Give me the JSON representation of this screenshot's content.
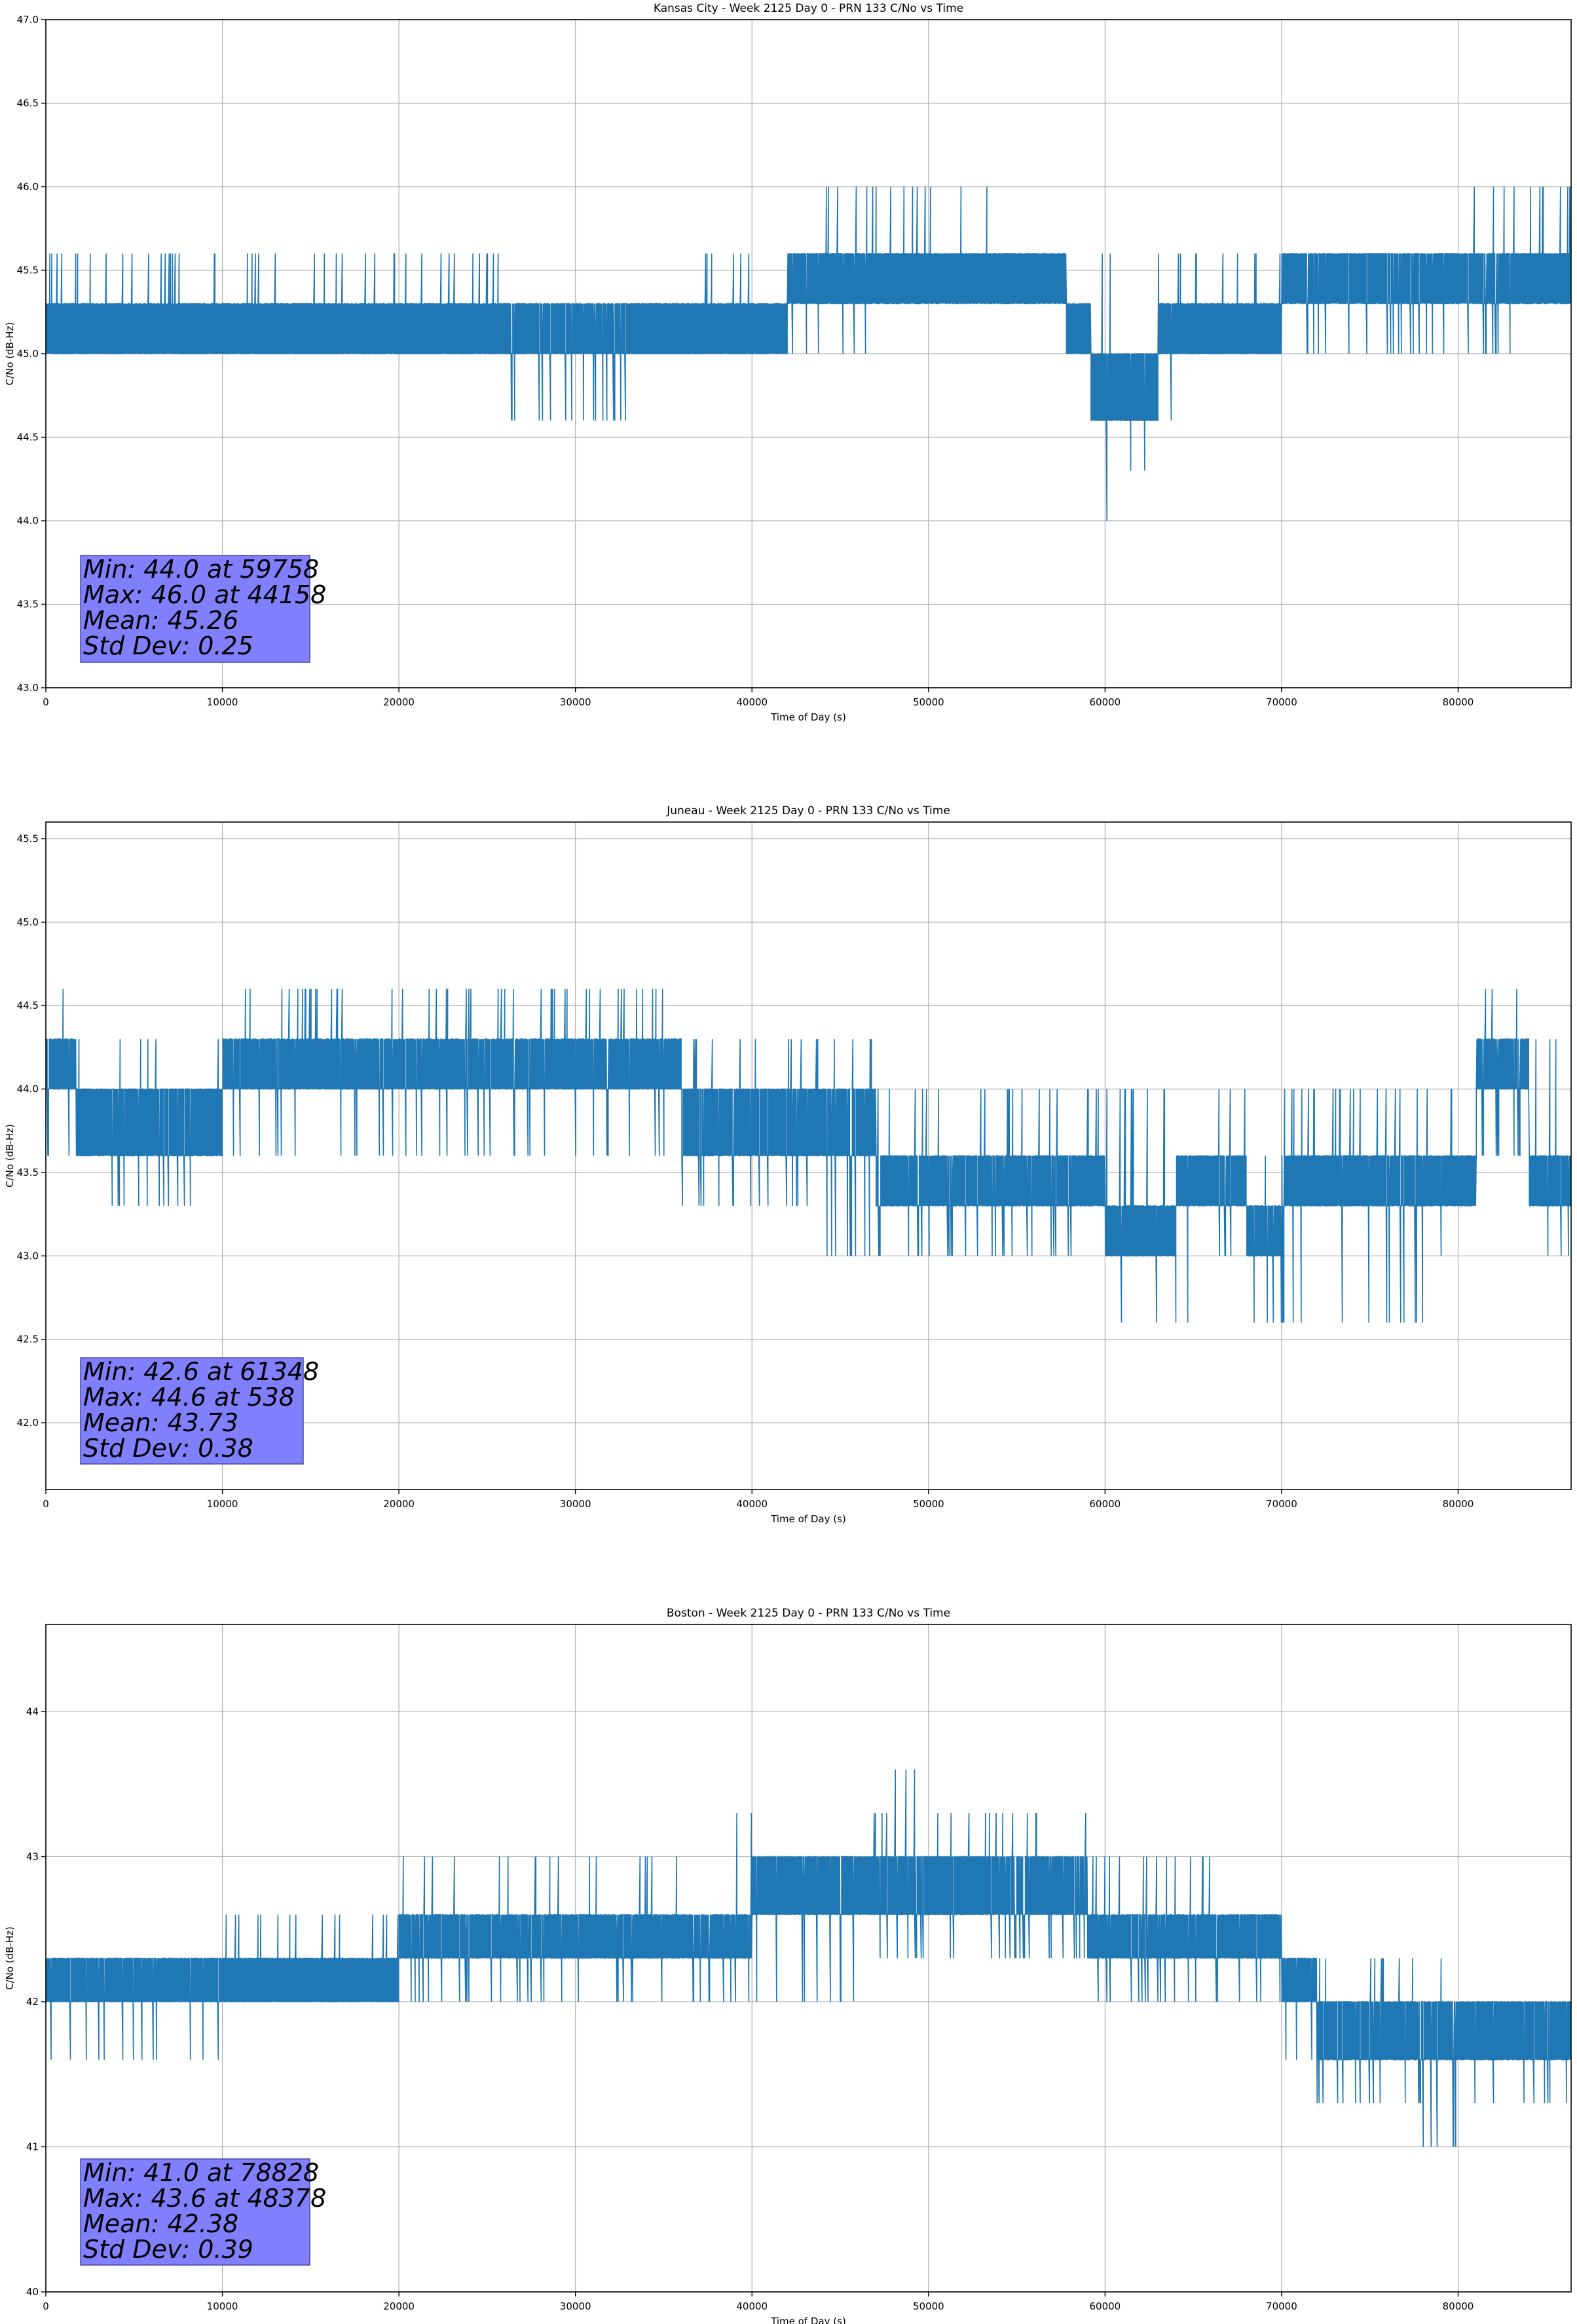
{
  "chart_data": [
    {
      "type": "line",
      "title": "Kansas City - Week 2125 Day 0 - PRN 133 C/No vs Time",
      "xlabel": "Time of Day (s)",
      "ylabel": "C/No (dB-Hz)",
      "xlim": [
        0,
        86400
      ],
      "ylim": [
        43.0,
        47.0
      ],
      "xticks": [
        0,
        10000,
        20000,
        30000,
        40000,
        50000,
        60000,
        70000,
        80000
      ],
      "yticks": [
        43.0,
        43.5,
        44.0,
        44.5,
        45.0,
        45.5,
        46.0,
        46.5,
        47.0
      ],
      "ytick_decimals": 1,
      "grid": true,
      "line_color": "#1f77b4",
      "stats_box_color": "#8080ff",
      "stats": [
        "Min: 44.0 at 59758",
        "Max: 46.0 at 44158",
        "Mean: 45.26",
        "Std Dev: 0.25"
      ],
      "series": [
        {
          "x": [
            0,
            2000,
            5000,
            10000,
            15000,
            20000,
            24000,
            26000,
            28000,
            31000,
            33000,
            37000,
            40000,
            42000,
            44000,
            47000,
            50000,
            54000,
            57000,
            57800,
            58700,
            59200,
            59800,
            61000,
            62000,
            63000,
            64500,
            66000,
            69000,
            70000,
            74000,
            78000,
            80000,
            83000,
            86400
          ],
          "low": [
            45.0,
            45.0,
            45.0,
            45.0,
            45.0,
            45.0,
            45.0,
            44.6,
            44.6,
            44.6,
            45.0,
            45.0,
            45.0,
            45.0,
            45.0,
            45.3,
            45.3,
            45.3,
            45.3,
            45.0,
            45.0,
            44.6,
            44.0,
            44.3,
            44.3,
            44.6,
            45.0,
            45.0,
            45.0,
            45.0,
            45.0,
            45.0,
            45.0,
            45.3,
            45.3
          ],
          "high": [
            45.6,
            45.6,
            45.6,
            45.6,
            45.6,
            45.6,
            45.6,
            45.3,
            45.3,
            45.3,
            45.3,
            45.6,
            45.6,
            45.6,
            46.0,
            46.0,
            46.0,
            45.6,
            45.6,
            45.3,
            45.3,
            45.0,
            45.6,
            45.0,
            45.0,
            45.6,
            45.6,
            45.6,
            45.6,
            45.6,
            45.6,
            45.6,
            46.0,
            46.0,
            46.0
          ],
          "core_low": [
            45.0,
            45.0,
            45.0,
            45.0,
            45.0,
            45.0,
            45.0,
            45.0,
            45.0,
            45.0,
            45.0,
            45.0,
            45.0,
            45.3,
            45.3,
            45.3,
            45.3,
            45.3,
            45.3,
            45.0,
            45.0,
            44.6,
            44.6,
            44.6,
            44.6,
            45.0,
            45.0,
            45.0,
            45.0,
            45.3,
            45.3,
            45.3,
            45.3,
            45.3,
            45.3
          ],
          "core_high": [
            45.3,
            45.3,
            45.3,
            45.3,
            45.3,
            45.3,
            45.3,
            45.3,
            45.3,
            45.3,
            45.3,
            45.3,
            45.3,
            45.6,
            45.6,
            45.6,
            45.6,
            45.6,
            45.6,
            45.3,
            45.3,
            45.0,
            45.0,
            45.0,
            45.0,
            45.3,
            45.3,
            45.3,
            45.3,
            45.6,
            45.6,
            45.6,
            45.6,
            45.6,
            45.6
          ]
        }
      ]
    },
    {
      "type": "line",
      "title": "Juneau - Week 2125 Day 0 - PRN 133 C/No vs Time",
      "xlabel": "Time of Day (s)",
      "ylabel": "C/No (dB-Hz)",
      "xlim": [
        0,
        86400
      ],
      "ylim": [
        41.6,
        45.6
      ],
      "xticks": [
        0,
        10000,
        20000,
        30000,
        40000,
        50000,
        60000,
        70000,
        80000
      ],
      "yticks": [
        42.0,
        42.5,
        43.0,
        43.5,
        44.0,
        44.5,
        45.0,
        45.5
      ],
      "ytick_decimals": 1,
      "grid": true,
      "line_color": "#1f77b4",
      "stats_box_color": "#8080ff",
      "stats": [
        "Min: 42.6 at 61348",
        "Max: 44.6 at 538",
        "Mean: 43.73",
        "Std Dev: 0.38"
      ],
      "series": [
        {
          "x": [
            0,
            1700,
            4000,
            9000,
            10000,
            15000,
            20000,
            25000,
            30000,
            36000,
            38000,
            40000,
            44000,
            47000,
            50000,
            53000,
            56000,
            59000,
            60000,
            62000,
            64000,
            66000,
            68000,
            70000,
            74000,
            78000,
            81000,
            84000,
            86400
          ],
          "low": [
            43.6,
            43.3,
            43.3,
            43.3,
            43.6,
            43.6,
            43.6,
            43.6,
            43.6,
            43.3,
            43.3,
            43.3,
            43.0,
            43.0,
            43.0,
            43.0,
            43.0,
            43.0,
            42.6,
            42.6,
            42.6,
            43.0,
            42.6,
            42.6,
            42.6,
            43.0,
            43.6,
            43.0,
            43.0
          ],
          "high": [
            44.6,
            44.3,
            44.3,
            44.3,
            44.6,
            44.6,
            44.6,
            44.6,
            44.6,
            44.3,
            44.3,
            44.3,
            44.3,
            44.0,
            44.0,
            44.0,
            44.0,
            44.0,
            44.0,
            44.0,
            43.6,
            44.0,
            43.6,
            44.0,
            44.0,
            44.0,
            44.6,
            44.3,
            44.0
          ],
          "core_low": [
            44.0,
            43.6,
            43.6,
            43.6,
            44.0,
            44.0,
            44.0,
            44.0,
            44.0,
            43.6,
            43.6,
            43.6,
            43.6,
            43.3,
            43.3,
            43.3,
            43.3,
            43.3,
            43.0,
            43.0,
            43.3,
            43.3,
            43.0,
            43.3,
            43.3,
            43.3,
            44.0,
            43.3,
            43.3
          ],
          "core_high": [
            44.3,
            44.0,
            44.0,
            44.0,
            44.3,
            44.3,
            44.3,
            44.3,
            44.3,
            44.0,
            44.0,
            44.0,
            44.0,
            43.6,
            43.6,
            43.6,
            43.6,
            43.6,
            43.3,
            43.3,
            43.6,
            43.6,
            43.3,
            43.6,
            43.6,
            43.6,
            44.3,
            43.6,
            43.6
          ]
        }
      ]
    },
    {
      "type": "line",
      "title": "Boston - Week 2125 Day 0 - PRN 133 C/No vs Time",
      "xlabel": "Time of Day (s)",
      "ylabel": "C/No (dB-Hz)",
      "xlim": [
        0,
        86400
      ],
      "ylim": [
        40,
        44.6
      ],
      "xticks": [
        0,
        10000,
        20000,
        30000,
        40000,
        50000,
        60000,
        70000,
        80000
      ],
      "yticks": [
        40,
        41,
        42,
        43,
        44
      ],
      "ytick_decimals": 0,
      "grid": true,
      "line_color": "#1f77b4",
      "stats_box_color": "#8080ff",
      "stats": [
        "Min: 41.0 at 78828",
        "Max: 43.6 at 48378",
        "Mean: 42.38",
        "Std Dev: 0.39"
      ],
      "series": [
        {
          "x": [
            0,
            5000,
            9000,
            10000,
            15000,
            20000,
            25000,
            30000,
            33000,
            37000,
            40000,
            44000,
            46000,
            48000,
            50000,
            54000,
            59000,
            60000,
            63000,
            66000,
            70000,
            72000,
            74000,
            78000,
            80000,
            83000,
            86400
          ],
          "low": [
            41.6,
            41.6,
            41.6,
            42.0,
            42.0,
            42.0,
            42.0,
            42.0,
            42.0,
            42.0,
            42.0,
            42.0,
            42.3,
            42.3,
            42.3,
            42.3,
            42.0,
            42.0,
            42.0,
            42.0,
            41.6,
            41.3,
            41.3,
            41.0,
            41.3,
            41.3,
            41.3
          ],
          "high": [
            42.3,
            42.3,
            42.3,
            42.6,
            42.6,
            43.0,
            43.0,
            43.0,
            43.0,
            43.3,
            43.0,
            43.0,
            43.3,
            43.6,
            43.3,
            43.3,
            43.0,
            43.0,
            43.0,
            42.6,
            42.3,
            42.3,
            42.3,
            42.3,
            42.0,
            42.0,
            42.0
          ],
          "core_low": [
            42.0,
            42.0,
            42.0,
            42.0,
            42.0,
            42.3,
            42.3,
            42.3,
            42.3,
            42.3,
            42.6,
            42.6,
            42.6,
            42.6,
            42.6,
            42.6,
            42.3,
            42.3,
            42.3,
            42.3,
            42.0,
            41.6,
            41.6,
            41.6,
            41.6,
            41.6,
            41.6
          ],
          "core_high": [
            42.3,
            42.3,
            42.3,
            42.3,
            42.3,
            42.6,
            42.6,
            42.6,
            42.6,
            42.6,
            43.0,
            43.0,
            43.0,
            43.0,
            43.0,
            43.0,
            42.6,
            42.6,
            42.6,
            42.6,
            42.3,
            42.0,
            42.0,
            42.0,
            42.0,
            42.0,
            42.0
          ]
        }
      ]
    }
  ]
}
